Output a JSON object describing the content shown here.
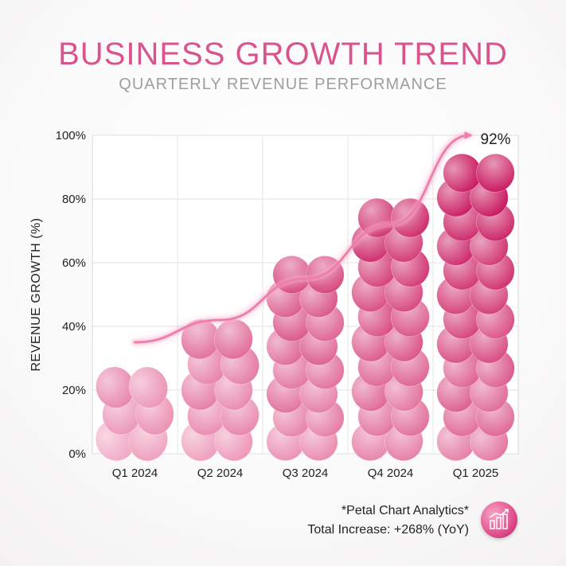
{
  "header": {
    "title": "BUSINESS GROWTH TREND",
    "subtitle": "QUARTERLY REVENUE PERFORMANCE"
  },
  "footer": {
    "brand": "*Petal Chart Analytics*",
    "summary": "Total Increase: +268% (YoY)",
    "icon": "bar-chart-icon"
  },
  "colors": {
    "title": "#d9538d",
    "subtitle": "#9e9e9e",
    "trend_line": "#f08cb5",
    "petal_light": "#f7bcd0",
    "petal_dark": "#c8155c"
  },
  "chart_data": {
    "type": "bar",
    "title": "BUSINESS GROWTH TREND",
    "subtitle": "QUARTERLY REVENUE PERFORMANCE",
    "xlabel": "",
    "ylabel": "REVENUE GROWTH (%)",
    "categories": [
      "Q1 2024",
      "Q2 2024",
      "Q3 2024",
      "Q4 2024",
      "Q1 2025"
    ],
    "values": [
      25,
      40,
      60,
      78,
      92
    ],
    "ylim": [
      0,
      100
    ],
    "yticks": [
      0,
      20,
      40,
      60,
      80,
      100
    ],
    "ytick_labels": [
      "0%",
      "20%",
      "40%",
      "60%",
      "80%",
      "100%"
    ],
    "grid": true,
    "trend_annotation": "92%",
    "trend_line": [
      35,
      42,
      55,
      72,
      100
    ]
  }
}
